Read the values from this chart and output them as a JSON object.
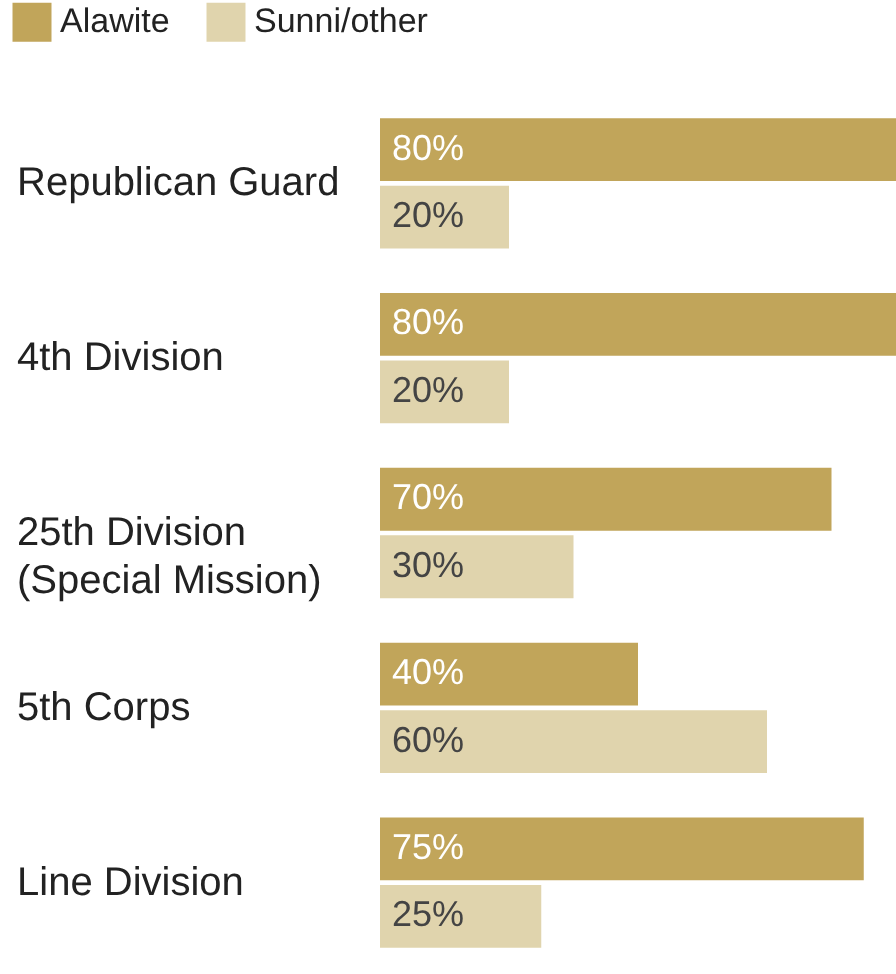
{
  "chart_data": {
    "type": "bar",
    "orientation": "horizontal",
    "categories": [
      "Republican Guard",
      "4th Division",
      "25th Division (Special Mission)",
      "5th Corps",
      "Line Division"
    ],
    "series": [
      {
        "name": "Alawite",
        "color": "#c1a55a",
        "values": [
          80,
          80,
          70,
          40,
          75
        ],
        "value_labels": [
          "80%",
          "80%",
          "70%",
          "40%",
          "75%"
        ]
      },
      {
        "name": "Sunni/other",
        "color": "#e0d4ad",
        "values": [
          20,
          20,
          30,
          60,
          25
        ],
        "value_labels": [
          "20%",
          "20%",
          "30%",
          "60%",
          "25%"
        ]
      }
    ],
    "legend": "top left"
  }
}
